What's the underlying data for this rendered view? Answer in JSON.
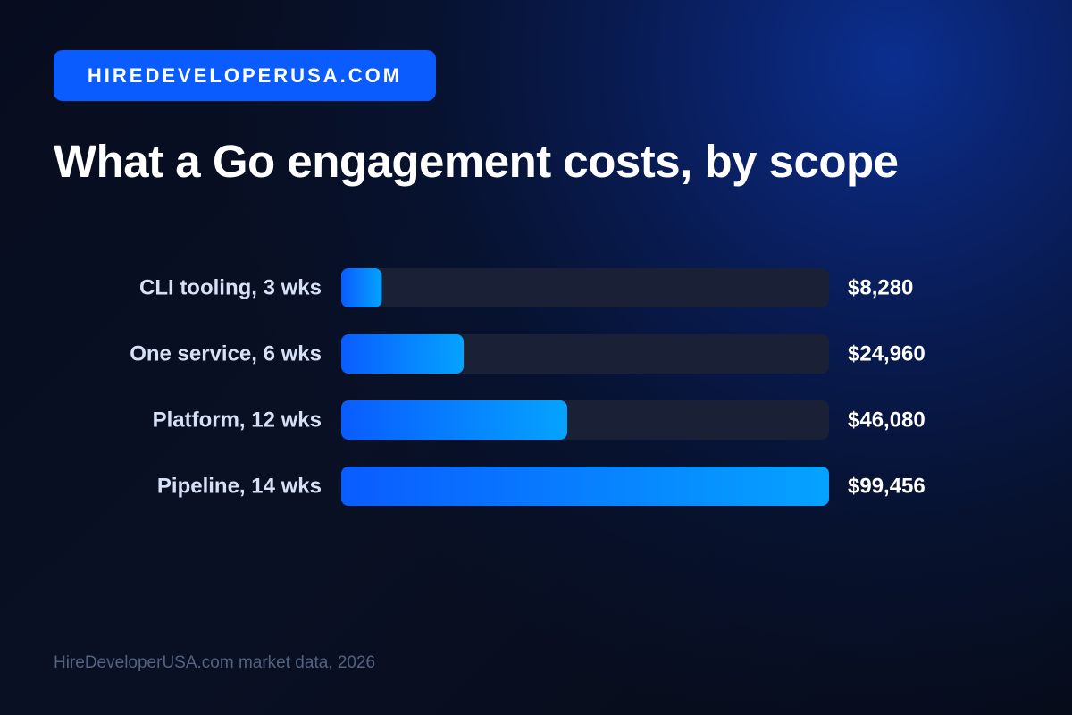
{
  "brand": {
    "label": "HIREDEVELOPERUSA.COM"
  },
  "title": "What a Go engagement costs, by scope",
  "chart_data": {
    "type": "bar",
    "orientation": "horizontal",
    "title": "What a Go engagement costs, by scope",
    "xlabel": "",
    "ylabel": "",
    "categories": [
      "CLI tooling, 3 wks",
      "One service, 6 wks",
      "Platform, 12 wks",
      "Pipeline, 14 wks"
    ],
    "values": [
      8280,
      24960,
      46080,
      99456
    ],
    "value_labels": [
      "$8,280",
      "$24,960",
      "$46,080",
      "$99,456"
    ],
    "xlim": [
      0,
      99456
    ],
    "grid": false,
    "legend": "none"
  },
  "footer": {
    "source": "HireDeveloperUSA.com market data, 2026"
  },
  "colors": {
    "background": "#070d1f",
    "accent": "#0a5cff",
    "bar_start": "#0a5cff",
    "bar_end": "#05a3ff",
    "track": "#1a2036",
    "category_text": "#d6e0f7",
    "value_text": "#ffffff",
    "muted_text": "#52627f"
  }
}
